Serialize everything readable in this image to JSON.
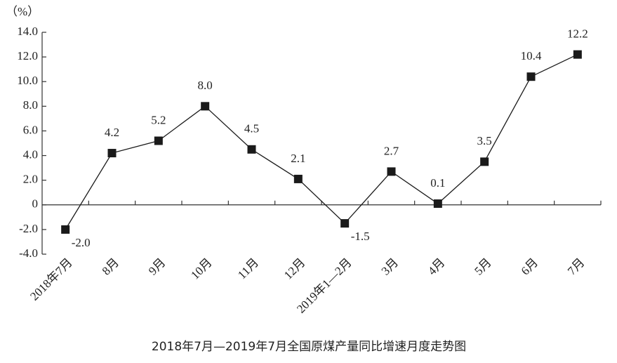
{
  "chart_data": {
    "type": "line",
    "y_label": "（%）",
    "caption": "2018年7月—2019年7月全国原煤产量同比增速月度走势图",
    "categories": [
      "2018年7月",
      "8月",
      "9月",
      "10月",
      "11月",
      "12月",
      "2019年1—2月",
      "3月",
      "4月",
      "5月",
      "6月",
      "7月"
    ],
    "values": [
      -2.0,
      4.2,
      5.2,
      8.0,
      4.5,
      2.1,
      -1.5,
      2.7,
      0.1,
      3.5,
      10.4,
      12.2
    ],
    "value_labels": [
      "-2.0",
      "4.2",
      "5.2",
      "8.0",
      "4.5",
      "2.1",
      "-1.5",
      "2.7",
      "0.1",
      "3.5",
      "10.4",
      "12.2"
    ],
    "color": "#1a1a1a",
    "ylim": [
      -4,
      14
    ],
    "yticks": [
      {
        "value": -4,
        "label": "-4.0"
      },
      {
        "value": -2,
        "label": "-2.0"
      },
      0,
      {
        "value": 2,
        "label": "2.0"
      },
      {
        "value": 4,
        "label": "4.0"
      },
      {
        "value": 6,
        "label": "6.0"
      },
      {
        "value": 8,
        "label": "8.0"
      },
      {
        "value": 10,
        "label": "10.0"
      },
      {
        "value": 12,
        "label": "12.0"
      },
      {
        "value": 14,
        "label": "14.0"
      }
    ]
  }
}
